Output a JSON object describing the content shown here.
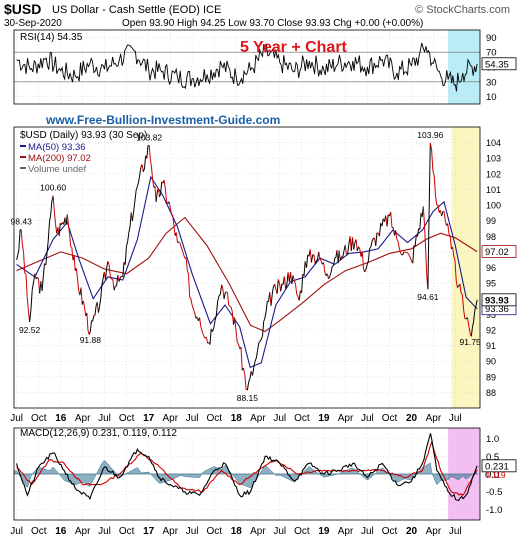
{
  "header": {
    "symbol": "$USD",
    "name": "US Dollar - Cash Settle (EOD)",
    "exchange": "ICE",
    "brand": "© StockCharts.com",
    "date": "30-Sep-2020",
    "ohlc_text": "Open 93.90  High 94.25  Low 93.70  Close 93.93  Chg +0.00 (+0.00%)"
  },
  "annotations": {
    "chart_title": "5 Year + Chart",
    "watermark": "www.Free-Bullion-Investment-Guide.com"
  },
  "colors": {
    "price": "#000000",
    "price_up": "#000000",
    "price_down": "#cc0000",
    "ma50": "#1a1a8c",
    "ma200": "#a01010",
    "rsi": "#000000",
    "macd": "#000000",
    "macd_signal": "#cc0000",
    "macd_hist": "#2f6f8f",
    "title": "#e0151b",
    "watermark": "#1a5fa8",
    "highlight_yellow": "#fbf5c0",
    "highlight_cyan": "#b9ecf7",
    "highlight_pink": "#f3bff2",
    "grid": "#d8d8d8"
  },
  "chart_data": [
    {
      "type": "line",
      "panel": "rsi",
      "legend": "RSI(14) 54.35",
      "ylim": [
        0,
        100
      ],
      "y_ticks": [
        10,
        30,
        50,
        70,
        90
      ],
      "reference_lines": [
        30,
        70
      ],
      "last_value_label": "54.35",
      "grid": true,
      "series": [
        {
          "name": "RSI(14)",
          "x": [
            "2015-07-01",
            "2015-09-01",
            "2015-11-01",
            "2016-01-01",
            "2016-03-01",
            "2016-05-01",
            "2016-07-01",
            "2016-09-01",
            "2016-11-01",
            "2017-01-01",
            "2017-03-01",
            "2017-05-01",
            "2017-07-01",
            "2017-09-01",
            "2017-11-01",
            "2018-01-01",
            "2018-03-01",
            "2018-05-01",
            "2018-07-01",
            "2018-09-01",
            "2018-11-01",
            "2019-01-01",
            "2019-03-01",
            "2019-05-01",
            "2019-07-01",
            "2019-09-01",
            "2019-11-01",
            "2020-01-01",
            "2020-02-01",
            "2020-03-01",
            "2020-04-01",
            "2020-05-01",
            "2020-06-01",
            "2020-07-01",
            "2020-08-01",
            "2020-09-30"
          ],
          "values": [
            60,
            48,
            62,
            45,
            38,
            55,
            47,
            60,
            72,
            46,
            44,
            36,
            34,
            40,
            52,
            36,
            46,
            70,
            56,
            44,
            58,
            46,
            55,
            58,
            50,
            60,
            42,
            52,
            64,
            78,
            55,
            38,
            33,
            26,
            42,
            54
          ]
        }
      ]
    },
    {
      "type": "line",
      "panel": "price",
      "legend": [
        "$USD (Daily) 93.93 (30 Sep)",
        "MA(50) 93.36",
        "MA(200) 97.02",
        "Volume undef"
      ],
      "ylim": [
        87,
        105
      ],
      "y_ticks": [
        88,
        89,
        90,
        91,
        92,
        93,
        94,
        95,
        96,
        97,
        98,
        99,
        100,
        101,
        102,
        103,
        104
      ],
      "x_tick_labels": [
        "Jul",
        "Oct",
        "16",
        "Apr",
        "Jul",
        "Oct",
        "17",
        "Apr",
        "Jul",
        "Oct",
        "18",
        "Apr",
        "Jul",
        "Oct",
        "19",
        "Apr",
        "Jul",
        "Oct",
        "20",
        "Apr",
        "Jul"
      ],
      "value_labels": [
        {
          "x": "2015-07-20",
          "y": 98.43,
          "text": "98.43"
        },
        {
          "x": "2015-08-24",
          "y": 92.52,
          "text": "92.52"
        },
        {
          "x": "2015-11-30",
          "y": 100.6,
          "text": "100.60"
        },
        {
          "x": "2016-05-03",
          "y": 91.88,
          "text": "91.88"
        },
        {
          "x": "2017-01-03",
          "y": 103.82,
          "text": "103.82"
        },
        {
          "x": "2018-02-16",
          "y": 88.15,
          "text": "88.15"
        },
        {
          "x": "2020-03-19",
          "y": 103.96,
          "text": "103.96"
        },
        {
          "x": "2020-03-09",
          "y": 94.61,
          "text": "94.61"
        },
        {
          "x": "2020-09-01",
          "y": 91.75,
          "text": "91.75"
        }
      ],
      "last_value_labels": [
        "93.93",
        "93.36",
        "97.02"
      ],
      "grid": true,
      "series": [
        {
          "name": "$USD",
          "x": [
            "2015-07-01",
            "2015-07-20",
            "2015-08-24",
            "2015-09-15",
            "2015-10-15",
            "2015-11-30",
            "2015-12-15",
            "2016-01-28",
            "2016-03-01",
            "2016-05-03",
            "2016-06-15",
            "2016-07-15",
            "2016-08-15",
            "2016-09-15",
            "2016-10-15",
            "2016-11-15",
            "2017-01-03",
            "2017-02-01",
            "2017-03-01",
            "2017-04-01",
            "2017-05-01",
            "2017-06-01",
            "2017-07-01",
            "2017-08-01",
            "2017-09-08",
            "2017-10-15",
            "2017-11-01",
            "2017-12-15",
            "2018-01-15",
            "2018-02-16",
            "2018-03-15",
            "2018-04-15",
            "2018-05-15",
            "2018-06-15",
            "2018-07-15",
            "2018-08-15",
            "2018-09-20",
            "2018-10-15",
            "2018-11-15",
            "2018-12-15",
            "2019-01-15",
            "2019-02-15",
            "2019-03-15",
            "2019-04-15",
            "2019-05-15",
            "2019-06-25",
            "2019-07-15",
            "2019-08-15",
            "2019-10-01",
            "2019-11-01",
            "2019-12-01",
            "2020-01-01",
            "2020-02-19",
            "2020-03-09",
            "2020-03-19",
            "2020-04-15",
            "2020-05-15",
            "2020-06-15",
            "2020-07-15",
            "2020-08-15",
            "2020-09-01",
            "2020-09-30"
          ],
          "values": [
            96.5,
            98.43,
            92.52,
            95.6,
            94.5,
            100.6,
            98.2,
            99.4,
            95.8,
            91.88,
            94.0,
            96.4,
            94.8,
            95.4,
            98.6,
            101.2,
            103.82,
            100.2,
            101.4,
            99.8,
            97.6,
            96.6,
            93.6,
            92.8,
            91.2,
            93.8,
            94.9,
            93.2,
            90.8,
            88.15,
            89.6,
            91.4,
            93.8,
            94.6,
            94.9,
            95.7,
            93.9,
            96.4,
            96.8,
            96.6,
            95.6,
            96.6,
            96.7,
            97.5,
            97.8,
            95.9,
            97.3,
            98.2,
            99.3,
            97.8,
            97.0,
            96.4,
            99.9,
            94.61,
            103.96,
            100.0,
            99.6,
            97.2,
            94.8,
            92.7,
            91.75,
            93.93
          ]
        },
        {
          "name": "MA(50)",
          "x": [
            "2015-07-01",
            "2015-09-15",
            "2015-11-30",
            "2016-01-28",
            "2016-03-15",
            "2016-05-15",
            "2016-07-15",
            "2016-09-15",
            "2016-11-15",
            "2017-01-10",
            "2017-03-01",
            "2017-05-01",
            "2017-07-01",
            "2017-09-15",
            "2017-11-15",
            "2018-01-15",
            "2018-02-28",
            "2018-04-15",
            "2018-06-15",
            "2018-08-15",
            "2018-10-15",
            "2018-12-15",
            "2019-02-15",
            "2019-04-15",
            "2019-06-15",
            "2019-08-15",
            "2019-10-15",
            "2019-12-15",
            "2020-02-15",
            "2020-03-31",
            "2020-05-15",
            "2020-07-01",
            "2020-08-15",
            "2020-09-30"
          ],
          "values": [
            96.2,
            95.4,
            97.8,
            98.9,
            96.6,
            94.0,
            95.4,
            95.2,
            97.8,
            101.8,
            100.6,
            98.6,
            95.6,
            92.4,
            93.6,
            92.2,
            89.6,
            89.9,
            93.6,
            95.1,
            95.4,
            96.6,
            96.2,
            96.9,
            97.0,
            97.2,
            98.4,
            97.6,
            98.4,
            99.6,
            100.2,
            97.4,
            94.1,
            93.36
          ]
        },
        {
          "name": "MA(200)",
          "x": [
            "2015-07-01",
            "2015-10-01",
            "2016-01-01",
            "2016-04-01",
            "2016-07-01",
            "2016-10-01",
            "2017-01-01",
            "2017-03-15",
            "2017-06-01",
            "2017-09-01",
            "2017-12-01",
            "2018-03-01",
            "2018-05-01",
            "2018-07-01",
            "2018-10-01",
            "2019-01-01",
            "2019-04-01",
            "2019-07-01",
            "2019-10-01",
            "2020-01-01",
            "2020-03-01",
            "2020-05-01",
            "2020-07-01",
            "2020-09-30"
          ],
          "values": [
            95.8,
            96.4,
            97.0,
            96.6,
            95.9,
            95.6,
            96.6,
            98.2,
            99.2,
            97.4,
            95.0,
            92.3,
            91.9,
            92.6,
            93.7,
            94.9,
            95.8,
            96.3,
            96.9,
            97.2,
            97.8,
            98.2,
            97.9,
            97.02
          ]
        }
      ]
    },
    {
      "type": "line",
      "panel": "macd",
      "legend": "MACD(12,26,9) 0.231, 0.119, 0.112",
      "ylim": [
        -1.3,
        1.3
      ],
      "y_ticks": [
        -1.0,
        -0.5,
        0.0,
        0.5,
        1.0
      ],
      "y_tick_labels": [
        "-1.0",
        "-0.5",
        "0.0",
        "0.5",
        "1.0"
      ],
      "last_value_labels": [
        "0.231",
        "0.119",
        "0.112"
      ],
      "x_tick_labels": [
        "Jul",
        "Oct",
        "16",
        "Apr",
        "Jul",
        "Oct",
        "17",
        "Apr",
        "Jul",
        "Oct",
        "18",
        "Apr",
        "Jul",
        "Oct",
        "19",
        "Apr",
        "Jul",
        "Oct",
        "20",
        "Apr",
        "Jul"
      ],
      "grid": true,
      "series": [
        {
          "name": "MACD",
          "x": [
            "2015-07-01",
            "2015-08-15",
            "2015-10-01",
            "2015-11-30",
            "2016-01-15",
            "2016-03-01",
            "2016-05-01",
            "2016-07-01",
            "2016-09-01",
            "2016-11-15",
            "2017-01-01",
            "2017-02-15",
            "2017-04-01",
            "2017-06-01",
            "2017-08-01",
            "2017-10-01",
            "2017-11-15",
            "2018-01-15",
            "2018-03-01",
            "2018-05-01",
            "2018-07-01",
            "2018-09-01",
            "2018-11-01",
            "2019-01-01",
            "2019-03-01",
            "2019-05-01",
            "2019-07-01",
            "2019-09-01",
            "2019-11-01",
            "2020-01-01",
            "2020-02-15",
            "2020-03-20",
            "2020-04-15",
            "2020-06-01",
            "2020-07-15",
            "2020-08-15",
            "2020-09-30"
          ],
          "values": [
            0.3,
            -0.6,
            0.2,
            0.6,
            0.1,
            -0.4,
            -0.7,
            0.2,
            -0.1,
            0.7,
            0.5,
            -0.1,
            -0.3,
            -0.5,
            -0.6,
            0.1,
            0.3,
            -0.6,
            -0.5,
            0.5,
            0.3,
            -0.2,
            0.3,
            0.0,
            0.1,
            0.3,
            -0.1,
            0.3,
            -0.3,
            -0.2,
            0.3,
            1.15,
            0.1,
            -0.5,
            -0.75,
            -0.6,
            0.231
          ]
        },
        {
          "name": "Signal",
          "x": [
            "2015-07-01",
            "2015-09-01",
            "2015-11-15",
            "2016-01-15",
            "2016-04-01",
            "2016-06-15",
            "2016-09-01",
            "2016-12-01",
            "2017-02-15",
            "2017-05-15",
            "2017-08-15",
            "2017-11-01",
            "2018-01-15",
            "2018-04-01",
            "2018-06-15",
            "2018-09-15",
            "2018-12-01",
            "2019-03-01",
            "2019-06-01",
            "2019-09-01",
            "2019-12-01",
            "2020-02-15",
            "2020-03-25",
            "2020-05-01",
            "2020-06-15",
            "2020-08-01",
            "2020-09-30"
          ],
          "values": [
            0.2,
            -0.3,
            0.4,
            0.3,
            -0.3,
            -0.3,
            0.0,
            0.6,
            0.2,
            -0.4,
            -0.5,
            0.1,
            -0.3,
            0.1,
            0.4,
            0.0,
            0.1,
            0.1,
            0.1,
            0.1,
            -0.1,
            0.1,
            0.9,
            0.1,
            -0.5,
            -0.6,
            0.119
          ]
        }
      ]
    }
  ]
}
